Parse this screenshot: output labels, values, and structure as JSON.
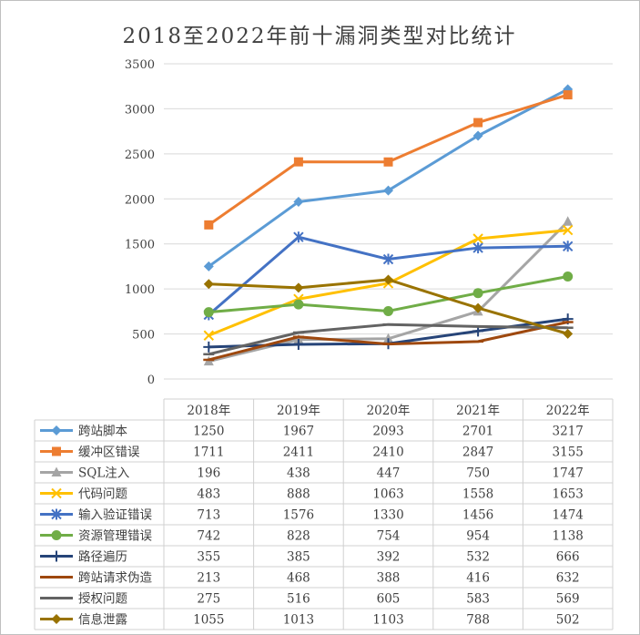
{
  "chart_data": {
    "type": "line",
    "title": "2018至2022年前十漏洞类型对比统计",
    "categories": [
      "2018年",
      "2019年",
      "2020年",
      "2021年",
      "2022年"
    ],
    "ylim": [
      0,
      3500
    ],
    "yticks": [
      0,
      500,
      1000,
      1500,
      2000,
      2500,
      3000,
      3500
    ],
    "grid": true,
    "legend": "data-table",
    "series": [
      {
        "name": "跨站脚本",
        "color": "#5B9BD5",
        "marker": "diamond",
        "values": [
          1250,
          1967,
          2093,
          2701,
          3217
        ]
      },
      {
        "name": "缓冲区错误",
        "color": "#ED7D31",
        "marker": "square",
        "values": [
          1711,
          2411,
          2410,
          2847,
          3155
        ]
      },
      {
        "name": "SQL注入",
        "color": "#A5A5A5",
        "marker": "triangle",
        "values": [
          196,
          438,
          447,
          750,
          1747
        ]
      },
      {
        "name": "代码问题",
        "color": "#FFC000",
        "marker": "x",
        "values": [
          483,
          888,
          1063,
          1558,
          1653
        ]
      },
      {
        "name": "输入验证错误",
        "color": "#4472C4",
        "marker": "star",
        "values": [
          713,
          1576,
          1330,
          1456,
          1474
        ]
      },
      {
        "name": "资源管理错误",
        "color": "#70AD47",
        "marker": "circle",
        "values": [
          742,
          828,
          754,
          954,
          1138
        ]
      },
      {
        "name": "路径遍历",
        "color": "#264478",
        "marker": "plus",
        "values": [
          355,
          385,
          392,
          532,
          666
        ]
      },
      {
        "name": "跨站请求伪造",
        "color": "#9E480E",
        "marker": "dash",
        "values": [
          213,
          468,
          388,
          416,
          632
        ]
      },
      {
        "name": "授权问题",
        "color": "#636363",
        "marker": "dash",
        "values": [
          275,
          516,
          605,
          583,
          569
        ]
      },
      {
        "name": "信息泄露",
        "color": "#997300",
        "marker": "diamond",
        "values": [
          1055,
          1013,
          1103,
          788,
          502
        ]
      }
    ]
  }
}
